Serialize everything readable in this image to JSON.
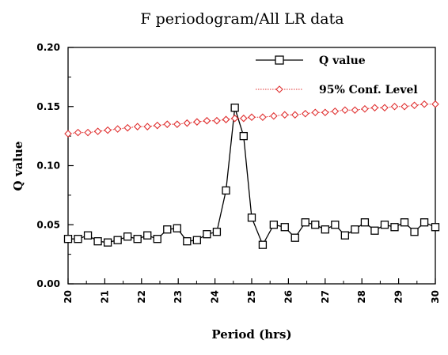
{
  "chart_data": {
    "type": "line",
    "title": "F periodogram/All LR data",
    "xlabel": "Period (hrs)",
    "ylabel": "Q value",
    "xlim": [
      20,
      30
    ],
    "ylim": [
      0,
      0.2
    ],
    "x_ticks": [
      "20",
      "21",
      "22",
      "23",
      "24",
      "25",
      "26",
      "27",
      "28",
      "29",
      "30"
    ],
    "y_ticks": [
      "0.00",
      "0.05",
      "0.10",
      "0.15",
      "0.20"
    ],
    "grid": false,
    "legend_position": "top-right",
    "series": [
      {
        "name": "Q value",
        "color": "#000000",
        "marker": "square",
        "line_style": "solid",
        "x": [
          20.0,
          20.27,
          20.54,
          20.81,
          21.08,
          21.35,
          21.62,
          21.89,
          22.16,
          22.43,
          22.7,
          22.97,
          23.24,
          23.51,
          23.78,
          24.05,
          24.3,
          24.54,
          24.78,
          25.0,
          25.3,
          25.6,
          25.9,
          26.18,
          26.46,
          26.73,
          27.0,
          27.27,
          27.54,
          27.81,
          28.08,
          28.35,
          28.62,
          28.89,
          29.16,
          29.43,
          29.7,
          30.0
        ],
        "y": [
          0.038,
          0.038,
          0.041,
          0.036,
          0.035,
          0.037,
          0.04,
          0.038,
          0.041,
          0.038,
          0.046,
          0.047,
          0.036,
          0.037,
          0.042,
          0.044,
          0.079,
          0.149,
          0.125,
          0.056,
          0.033,
          0.05,
          0.048,
          0.039,
          0.052,
          0.05,
          0.046,
          0.05,
          0.041,
          0.046,
          0.052,
          0.045,
          0.05,
          0.048,
          0.052,
          0.044,
          0.052,
          0.048
        ]
      },
      {
        "name": "95% Conf. Level",
        "color": "#e03030",
        "marker": "diamond",
        "line_style": "dotted",
        "x": [
          20.0,
          20.27,
          20.54,
          20.81,
          21.08,
          21.35,
          21.62,
          21.89,
          22.16,
          22.43,
          22.7,
          22.97,
          23.24,
          23.51,
          23.78,
          24.05,
          24.3,
          24.54,
          24.78,
          25.0,
          25.3,
          25.6,
          25.9,
          26.18,
          26.46,
          26.73,
          27.0,
          27.27,
          27.54,
          27.81,
          28.08,
          28.35,
          28.62,
          28.89,
          29.16,
          29.43,
          29.7,
          30.0
        ],
        "y": [
          0.127,
          0.128,
          0.128,
          0.129,
          0.13,
          0.131,
          0.132,
          0.133,
          0.133,
          0.134,
          0.135,
          0.135,
          0.136,
          0.137,
          0.138,
          0.138,
          0.139,
          0.14,
          0.14,
          0.141,
          0.141,
          0.142,
          0.143,
          0.143,
          0.144,
          0.145,
          0.145,
          0.146,
          0.147,
          0.147,
          0.148,
          0.149,
          0.149,
          0.15,
          0.15,
          0.151,
          0.152,
          0.152
        ]
      }
    ]
  }
}
